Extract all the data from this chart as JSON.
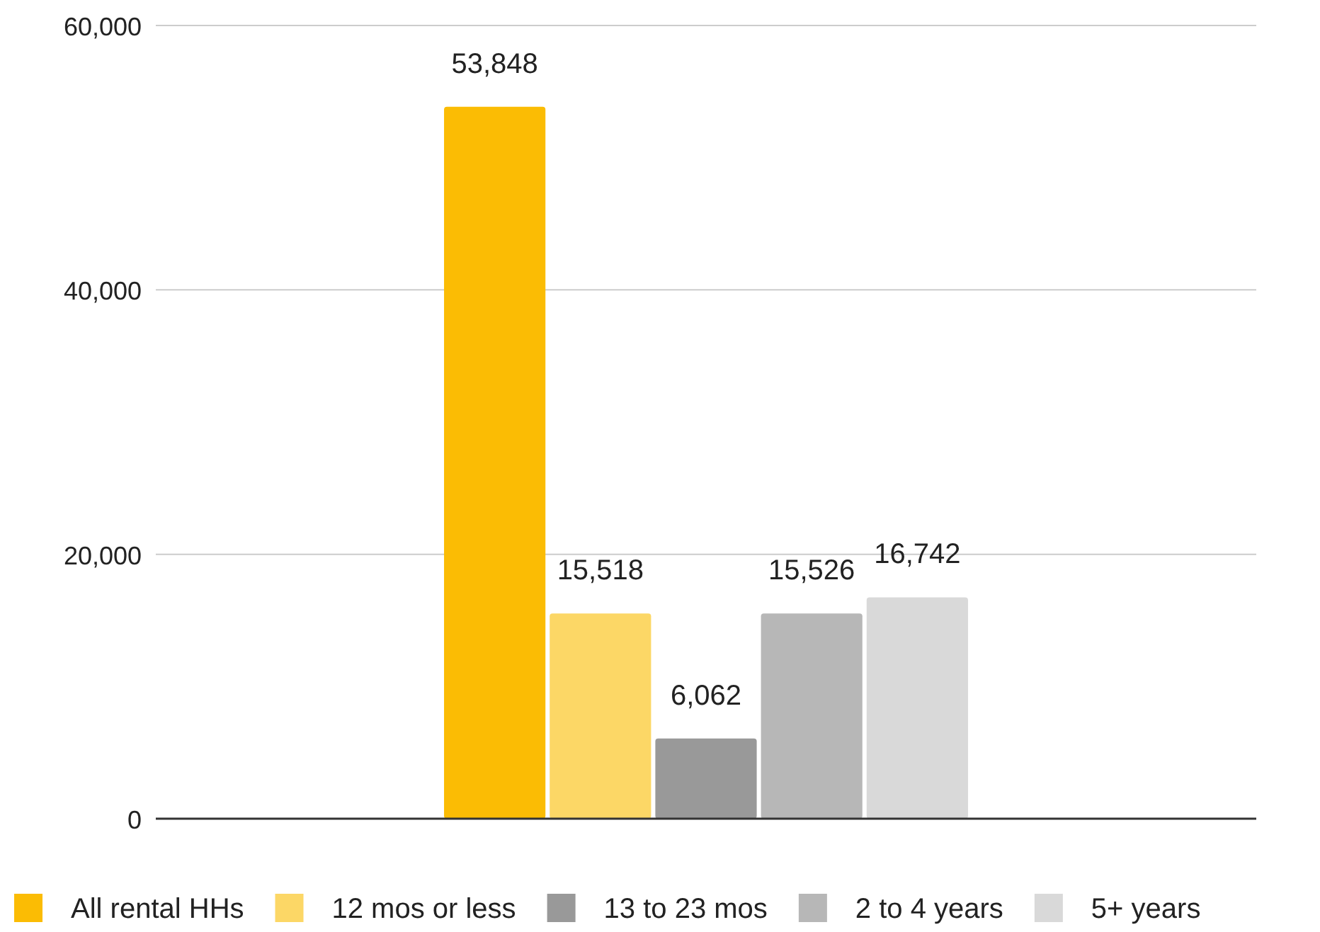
{
  "chart_data": {
    "type": "bar",
    "categories": [
      null
    ],
    "series": [
      {
        "name": "All rental HHs",
        "color": "#fbbc04",
        "values": [
          53848
        ],
        "value_labels": [
          "53,848"
        ]
      },
      {
        "name": "12 mos or less",
        "color": "#fcd766",
        "values": [
          15518
        ],
        "value_labels": [
          "15,518"
        ]
      },
      {
        "name": "13 to 23 mos",
        "color": "#999999",
        "values": [
          6062
        ],
        "value_labels": [
          "6,062"
        ]
      },
      {
        "name": "2 to 4 years",
        "color": "#b7b7b7",
        "values": [
          15526
        ],
        "value_labels": [
          "15,526"
        ]
      },
      {
        "name": "5+ years",
        "color": "#d9d9d9",
        "values": [
          16742
        ],
        "value_labels": [
          "16,742"
        ]
      }
    ],
    "ylim": [
      0,
      60000
    ],
    "yticks": [
      {
        "value": 0,
        "label": "0"
      },
      {
        "value": 20000,
        "label": "20,000"
      },
      {
        "value": 40000,
        "label": "40,000"
      },
      {
        "value": 60000,
        "label": "60,000"
      }
    ],
    "grid": "y",
    "legend": "bottom"
  }
}
